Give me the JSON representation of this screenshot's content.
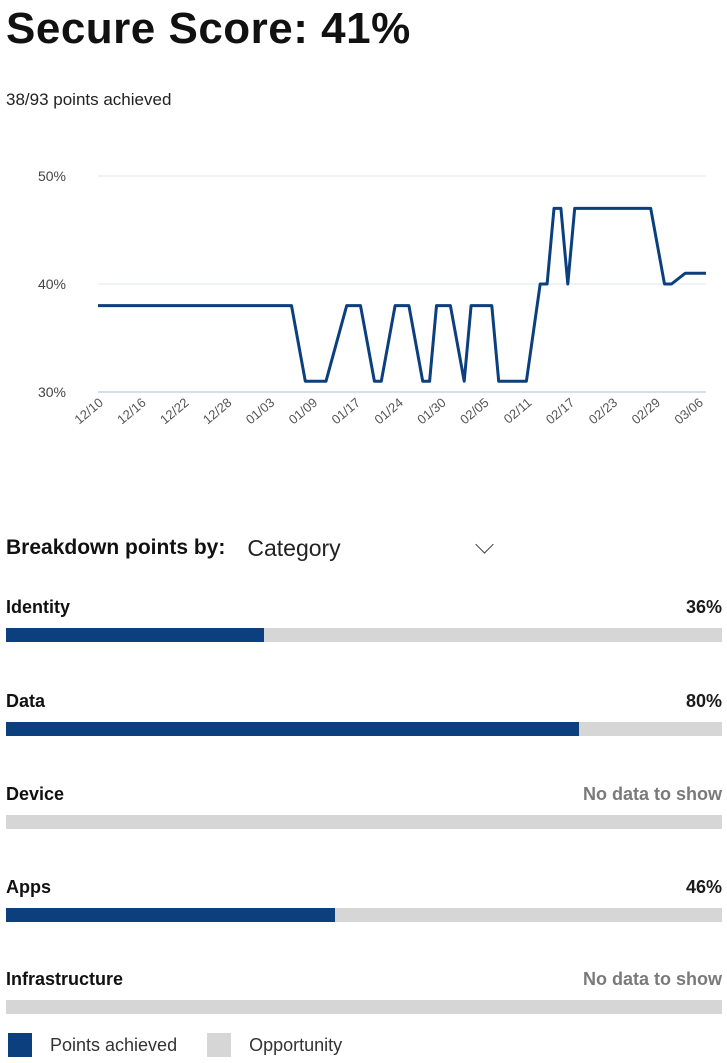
{
  "header": {
    "title": "Secure Score: 41%",
    "subtitle": "38/93 points achieved"
  },
  "chart_data": {
    "type": "line",
    "title": "",
    "xlabel": "",
    "ylabel": "",
    "ylim": [
      30,
      50
    ],
    "yticks": [
      "30%",
      "40%",
      "50%"
    ],
    "grid": "horizontal",
    "color": "#0b3f7e",
    "x_tick_labels": [
      "12/10",
      "12/16",
      "12/22",
      "12/28",
      "01/03",
      "01/09",
      "01/17",
      "01/24",
      "01/30",
      "02/05",
      "02/11",
      "02/17",
      "02/23",
      "02/29",
      "03/06"
    ],
    "x": [
      "12/10",
      "12/20",
      "12/30",
      "01/07",
      "01/09",
      "01/10",
      "01/12",
      "01/15",
      "01/17",
      "01/19",
      "01/20",
      "01/22",
      "01/24",
      "01/26",
      "01/27",
      "01/28",
      "01/30",
      "02/01",
      "02/02",
      "02/03",
      "02/04",
      "02/05",
      "02/06",
      "02/09",
      "02/10",
      "02/12",
      "02/13",
      "02/14",
      "02/15",
      "02/16",
      "02/17",
      "02/18",
      "02/19",
      "02/24",
      "02/28",
      "03/01",
      "03/02",
      "03/04",
      "03/07"
    ],
    "values": [
      38,
      38,
      38,
      38,
      31,
      31,
      31,
      38,
      38,
      31,
      31,
      38,
      38,
      31,
      31,
      38,
      38,
      31,
      38,
      38,
      38,
      38,
      31,
      31,
      31,
      40,
      40,
      47,
      47,
      40,
      47,
      47,
      47,
      47,
      47,
      40,
      40,
      41,
      41
    ]
  },
  "breakdown": {
    "label": "Breakdown points by:",
    "selected": "Category"
  },
  "categories": [
    {
      "name": "Identity",
      "value": "36%",
      "achieved": 0.36,
      "has_data": true
    },
    {
      "name": "Data",
      "value": "80%",
      "achieved": 0.8,
      "has_data": true
    },
    {
      "name": "Device",
      "value": "No data to show",
      "achieved": 0,
      "has_data": false
    },
    {
      "name": "Apps",
      "value": "46%",
      "achieved": 0.46,
      "has_data": true
    },
    {
      "name": "Infrastructure",
      "value": "No data to show",
      "achieved": 0,
      "has_data": false
    }
  ],
  "legend": {
    "achieved_label": "Points achieved",
    "opportunity_label": "Opportunity",
    "achieved_color": "#0b3f7e",
    "opportunity_color": "#d6d6d6"
  }
}
